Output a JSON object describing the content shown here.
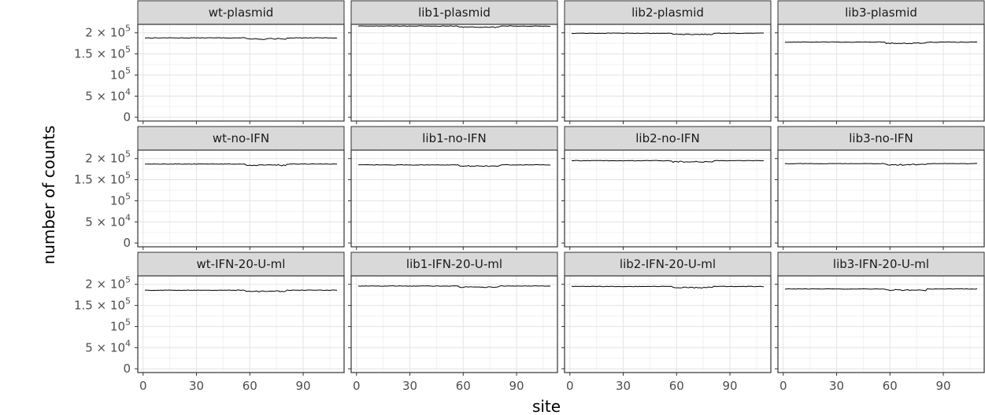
{
  "chart_data": {
    "type": "line",
    "layout": "facet-grid 3x4",
    "xlabel": "site",
    "ylabel": "number of counts",
    "xlim": [
      -3,
      113
    ],
    "ylim": [
      -9000,
      220000
    ],
    "x_ticks": [
      0,
      30,
      60,
      90
    ],
    "x_tick_labels": [
      "0",
      "30",
      "60",
      "90"
    ],
    "y_ticks": [
      0,
      50000,
      100000,
      150000,
      200000
    ],
    "y_tick_labels": [
      {
        "base": "0",
        "sup": ""
      },
      {
        "base": "5 × 10",
        "sup": "4"
      },
      {
        "base": "10",
        "sup": "5"
      },
      {
        "base": "1.5 × 10",
        "sup": "5"
      },
      {
        "base": "2 × 10",
        "sup": "5"
      }
    ],
    "site_range": [
      1,
      109
    ],
    "dip_region": [
      58,
      80
    ],
    "grid": true,
    "panels": [
      {
        "label": "wt-plasmid",
        "level": 188000
      },
      {
        "label": "lib1-plasmid",
        "level": 216000
      },
      {
        "label": "lib2-plasmid",
        "level": 199000
      },
      {
        "label": "lib3-plasmid",
        "level": 178000
      },
      {
        "label": "wt-no-IFN",
        "level": 187000
      },
      {
        "label": "lib1-no-IFN",
        "level": 185000
      },
      {
        "label": "lib2-no-IFN",
        "level": 195000
      },
      {
        "label": "lib3-no-IFN",
        "level": 188000
      },
      {
        "label": "wt-IFN-20-U-ml",
        "level": 186000
      },
      {
        "label": "lib1-IFN-20-U-ml",
        "level": 196000
      },
      {
        "label": "lib2-IFN-20-U-ml",
        "level": 195000
      },
      {
        "label": "lib3-IFN-20-U-ml",
        "level": 189000
      }
    ]
  }
}
